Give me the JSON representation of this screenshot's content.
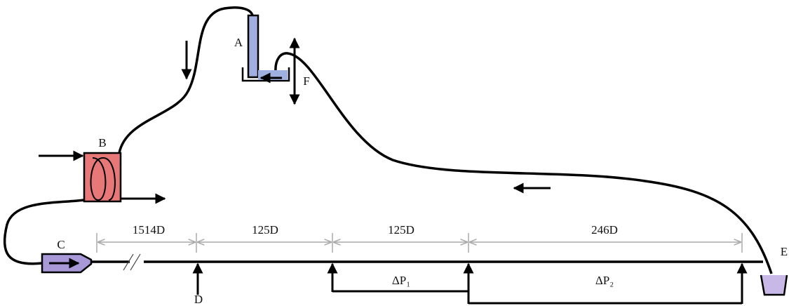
{
  "labels": {
    "A": "A",
    "B": "B",
    "C": "C",
    "D": "D",
    "E": "E",
    "F": "F"
  },
  "dimensions": [
    "1514D",
    "125D",
    "125D",
    "246D"
  ],
  "pressures": [
    "ΔP₁",
    "ΔP₂"
  ]
}
